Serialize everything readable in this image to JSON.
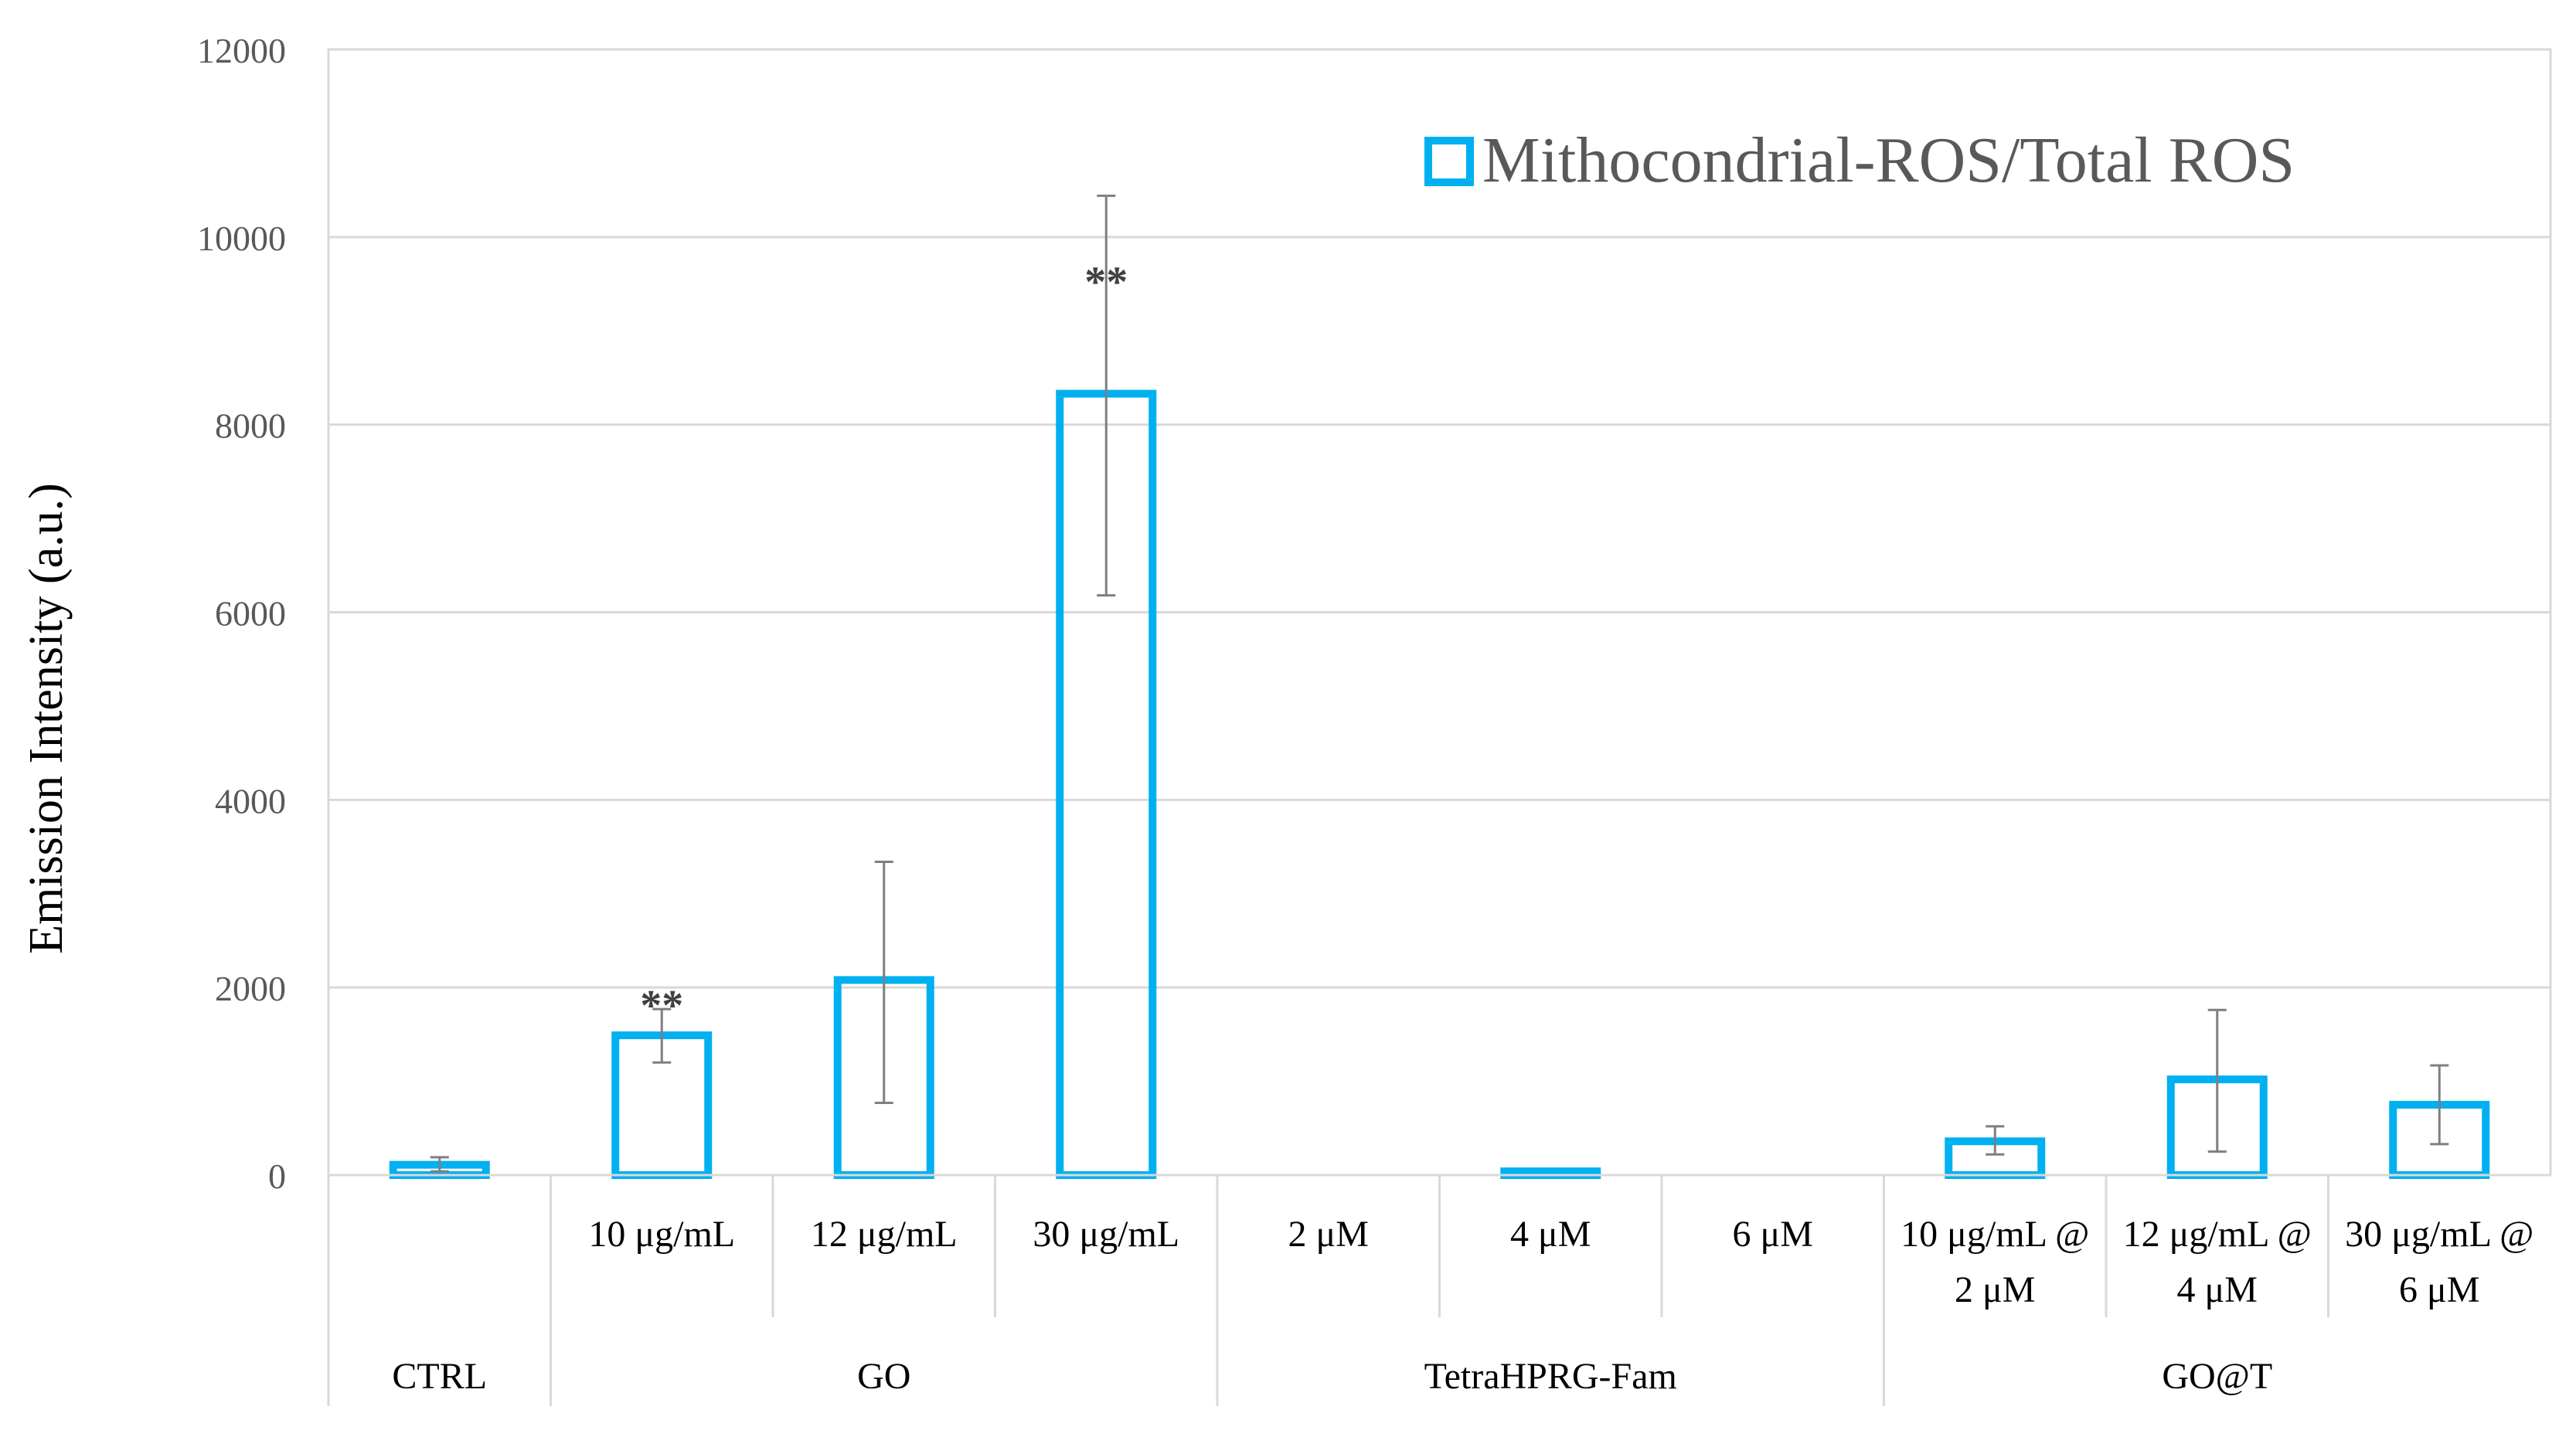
{
  "chart_data": {
    "type": "bar",
    "title": "",
    "xlabel": "",
    "ylabel": "Emission Intensity (a.u.)",
    "ylim": [
      0,
      12000
    ],
    "y_ticks": [
      "0",
      "2000",
      "4000",
      "6000",
      "8000",
      "10000",
      "12000"
    ],
    "grid": true,
    "legend": {
      "placement": "top-right",
      "label": "Mithocondrial-ROS/Total ROS"
    },
    "series": [
      {
        "name": "Mithocondrial-ROS/Total ROS",
        "color": "#00b0f0"
      }
    ],
    "categories": [
      {
        "label_lines": [],
        "group": "CTRL",
        "value": 110,
        "error_high": 190,
        "error_low": 40,
        "annotation": ""
      },
      {
        "label_lines": [
          "10 μg/mL"
        ],
        "group": "GO",
        "value": 1490,
        "error_high": 1770,
        "error_low": 1200,
        "annotation": "**"
      },
      {
        "label_lines": [
          "12 μg/mL"
        ],
        "group": "GO",
        "value": 2080,
        "error_high": 3340,
        "error_low": 770,
        "annotation": ""
      },
      {
        "label_lines": [
          "30 μg/mL"
        ],
        "group": "GO",
        "value": 8330,
        "error_high": 10440,
        "error_low": 6180,
        "annotation": "**"
      },
      {
        "label_lines": [
          "2 μM"
        ],
        "group": "TetraHPRG-Fam",
        "value": 0,
        "error_high": null,
        "error_low": null,
        "annotation": ""
      },
      {
        "label_lines": [
          "4 μM"
        ],
        "group": "TetraHPRG-Fam",
        "value": 40,
        "error_high": null,
        "error_low": null,
        "annotation": ""
      },
      {
        "label_lines": [
          "6 μM"
        ],
        "group": "TetraHPRG-Fam",
        "value": 0,
        "error_high": null,
        "error_low": null,
        "annotation": ""
      },
      {
        "label_lines": [
          "10 μg/mL @",
          "2 μM"
        ],
        "group": "GO@T",
        "value": 360,
        "error_high": 520,
        "error_low": 220,
        "annotation": ""
      },
      {
        "label_lines": [
          "12 μg/mL @",
          "4 μM"
        ],
        "group": "GO@T",
        "value": 1020,
        "error_high": 1760,
        "error_low": 250,
        "annotation": ""
      },
      {
        "label_lines": [
          "30 μg/mL @",
          "6 μM"
        ],
        "group": "GO@T",
        "value": 750,
        "error_high": 1170,
        "error_low": 330,
        "annotation": ""
      }
    ],
    "groups": [
      {
        "label": "CTRL",
        "span": 1
      },
      {
        "label": "GO",
        "span": 3
      },
      {
        "label": "TetraHPRG-Fam",
        "span": 3
      },
      {
        "label": "GO@T",
        "span": 3
      }
    ]
  }
}
